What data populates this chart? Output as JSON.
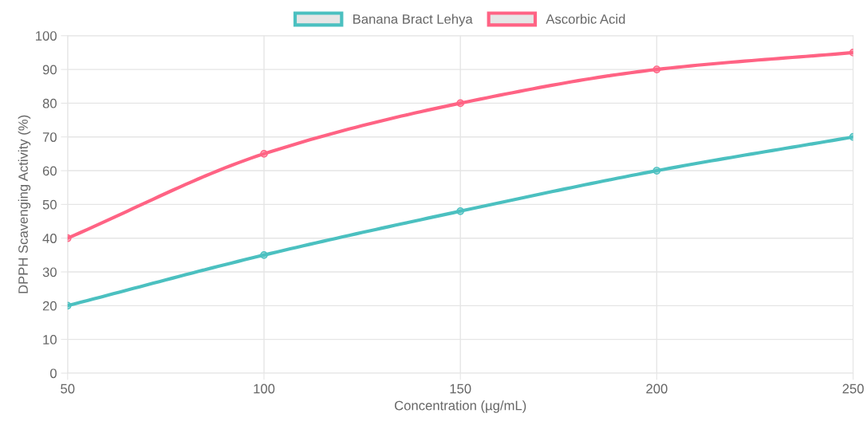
{
  "chart_data": {
    "type": "line",
    "xlabel": "Concentration (µg/mL)",
    "ylabel": "DPPH Scavenging Activity (%)",
    "x": [
      50,
      100,
      150,
      200,
      250
    ],
    "series": [
      {
        "name": "Banana Bract Lehya",
        "color": "#4bc0c0",
        "values": [
          20,
          35,
          48,
          60,
          70
        ]
      },
      {
        "name": "Ascorbic Acid",
        "color": "#ff6384",
        "values": [
          40,
          65,
          80,
          90,
          95
        ]
      }
    ],
    "xlim": [
      50,
      250
    ],
    "xticks": [
      50,
      100,
      150,
      200,
      250
    ],
    "ylim": [
      0,
      100
    ],
    "yticks": [
      0,
      10,
      20,
      30,
      40,
      50,
      60,
      70,
      80,
      90,
      100
    ],
    "grid": true,
    "legend": "top",
    "marker": "circle",
    "line_style": "solid"
  }
}
